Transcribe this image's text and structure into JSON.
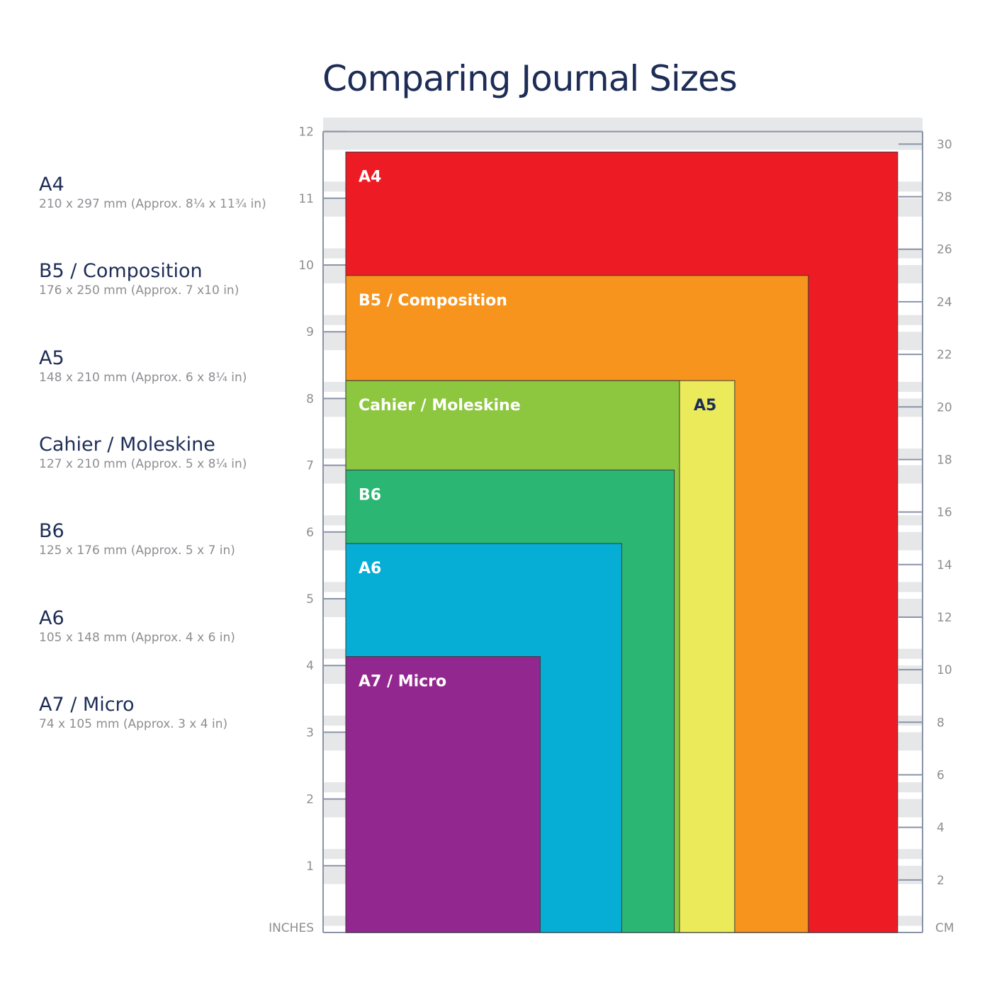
{
  "title": "Comparing Journal Sizes",
  "chart_data": {
    "type": "bar",
    "title": "Comparing Journal Sizes",
    "left_axis": {
      "label": "INCHES",
      "ticks": [
        "1",
        "2",
        "3",
        "4",
        "5",
        "6",
        "7",
        "8",
        "9",
        "10",
        "11",
        "12"
      ],
      "range": [
        0,
        12
      ]
    },
    "right_axis": {
      "label": "CM",
      "ticks": [
        "2",
        "4",
        "6",
        "8",
        "10",
        "12",
        "14",
        "16",
        "18",
        "20",
        "22",
        "24",
        "26",
        "28",
        "30"
      ],
      "range": [
        0,
        30.48
      ]
    },
    "books": [
      {
        "name": "A4",
        "dims": "210 x 297 mm (Approx. 8¼ x 11¾ in)",
        "width_mm": 210,
        "height_mm": 297,
        "color": "#ed1c24"
      },
      {
        "name": "B5 / Composition",
        "dims": "176 x 250 mm (Approx. 7 x10 in)",
        "width_mm": 176,
        "height_mm": 250,
        "color": "#f7941d"
      },
      {
        "name": "A5",
        "dims": "148 x 210 mm (Approx. 6 x 8¼ in)",
        "width_mm": 148,
        "height_mm": 210,
        "color": "#eaea5a"
      },
      {
        "name": "Cahier / Moleskine",
        "dims": "127 x 210 mm (Approx. 5 x 8¼ in)",
        "width_mm": 127,
        "height_mm": 210,
        "color": "#8dc63f"
      },
      {
        "name": "B6",
        "dims": "125 x 176 mm (Approx. 5 x 7 in)",
        "width_mm": 125,
        "height_mm": 176,
        "color": "#2bb673"
      },
      {
        "name": "A6",
        "dims": "105 x 148 mm (Approx. 4 x 6 in)",
        "width_mm": 105,
        "height_mm": 148,
        "color": "#06aed5"
      },
      {
        "name": "A7 / Micro",
        "dims": "74 x 105 mm (Approx. 3 x 4 in)",
        "width_mm": 74,
        "height_mm": 105,
        "color": "#92278f"
      }
    ],
    "grid": true
  }
}
